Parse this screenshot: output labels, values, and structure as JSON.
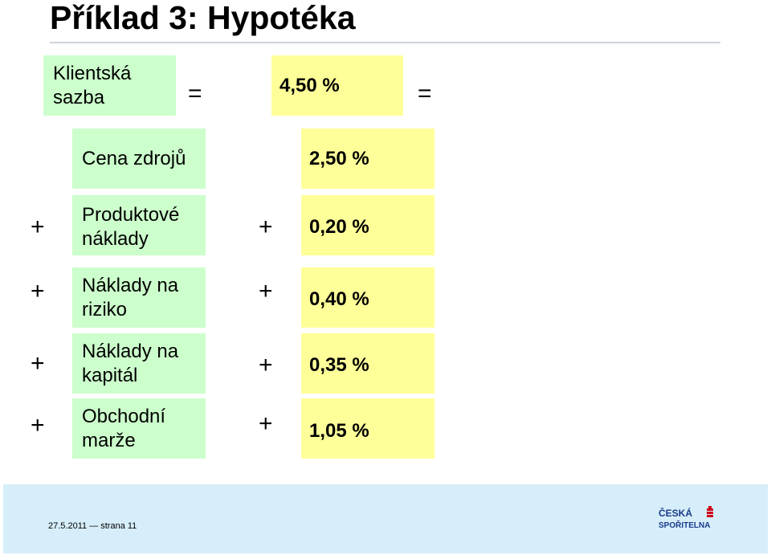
{
  "title": "Příklad 3: Hypotéka",
  "client_rate": {
    "label": "Klientská sazba",
    "value": "4,50 %"
  },
  "equals_sign": "=",
  "rows": [
    {
      "op": "",
      "label": "Cena zdrojů",
      "value_op": "",
      "value": "2,50 %"
    },
    {
      "op": "+",
      "label": "Produktové náklady",
      "value_op": "+",
      "value": "0,20 %"
    },
    {
      "op": "+",
      "label": "Náklady na riziko",
      "value_op": "+",
      "value": "0,40 %"
    },
    {
      "op": "+",
      "label": "Náklady na kapitál",
      "value_op": "+",
      "value": "0,35 %"
    },
    {
      "op": "+",
      "label": "Obchodní marže",
      "value_op": "+",
      "value": "1,05 %"
    }
  ],
  "footer": {
    "date": "27.5.2011",
    "separator": "—",
    "page": "strana 11",
    "logo": {
      "line1": "ČESKÁ",
      "line2": "SPOŘITELNA",
      "brand_color": "#d0021b",
      "text_color": "#1a3b8c"
    }
  },
  "colors": {
    "label_box": "#ccffcc",
    "value_box": "#ffff99",
    "footer_band": "#d6eef9"
  }
}
